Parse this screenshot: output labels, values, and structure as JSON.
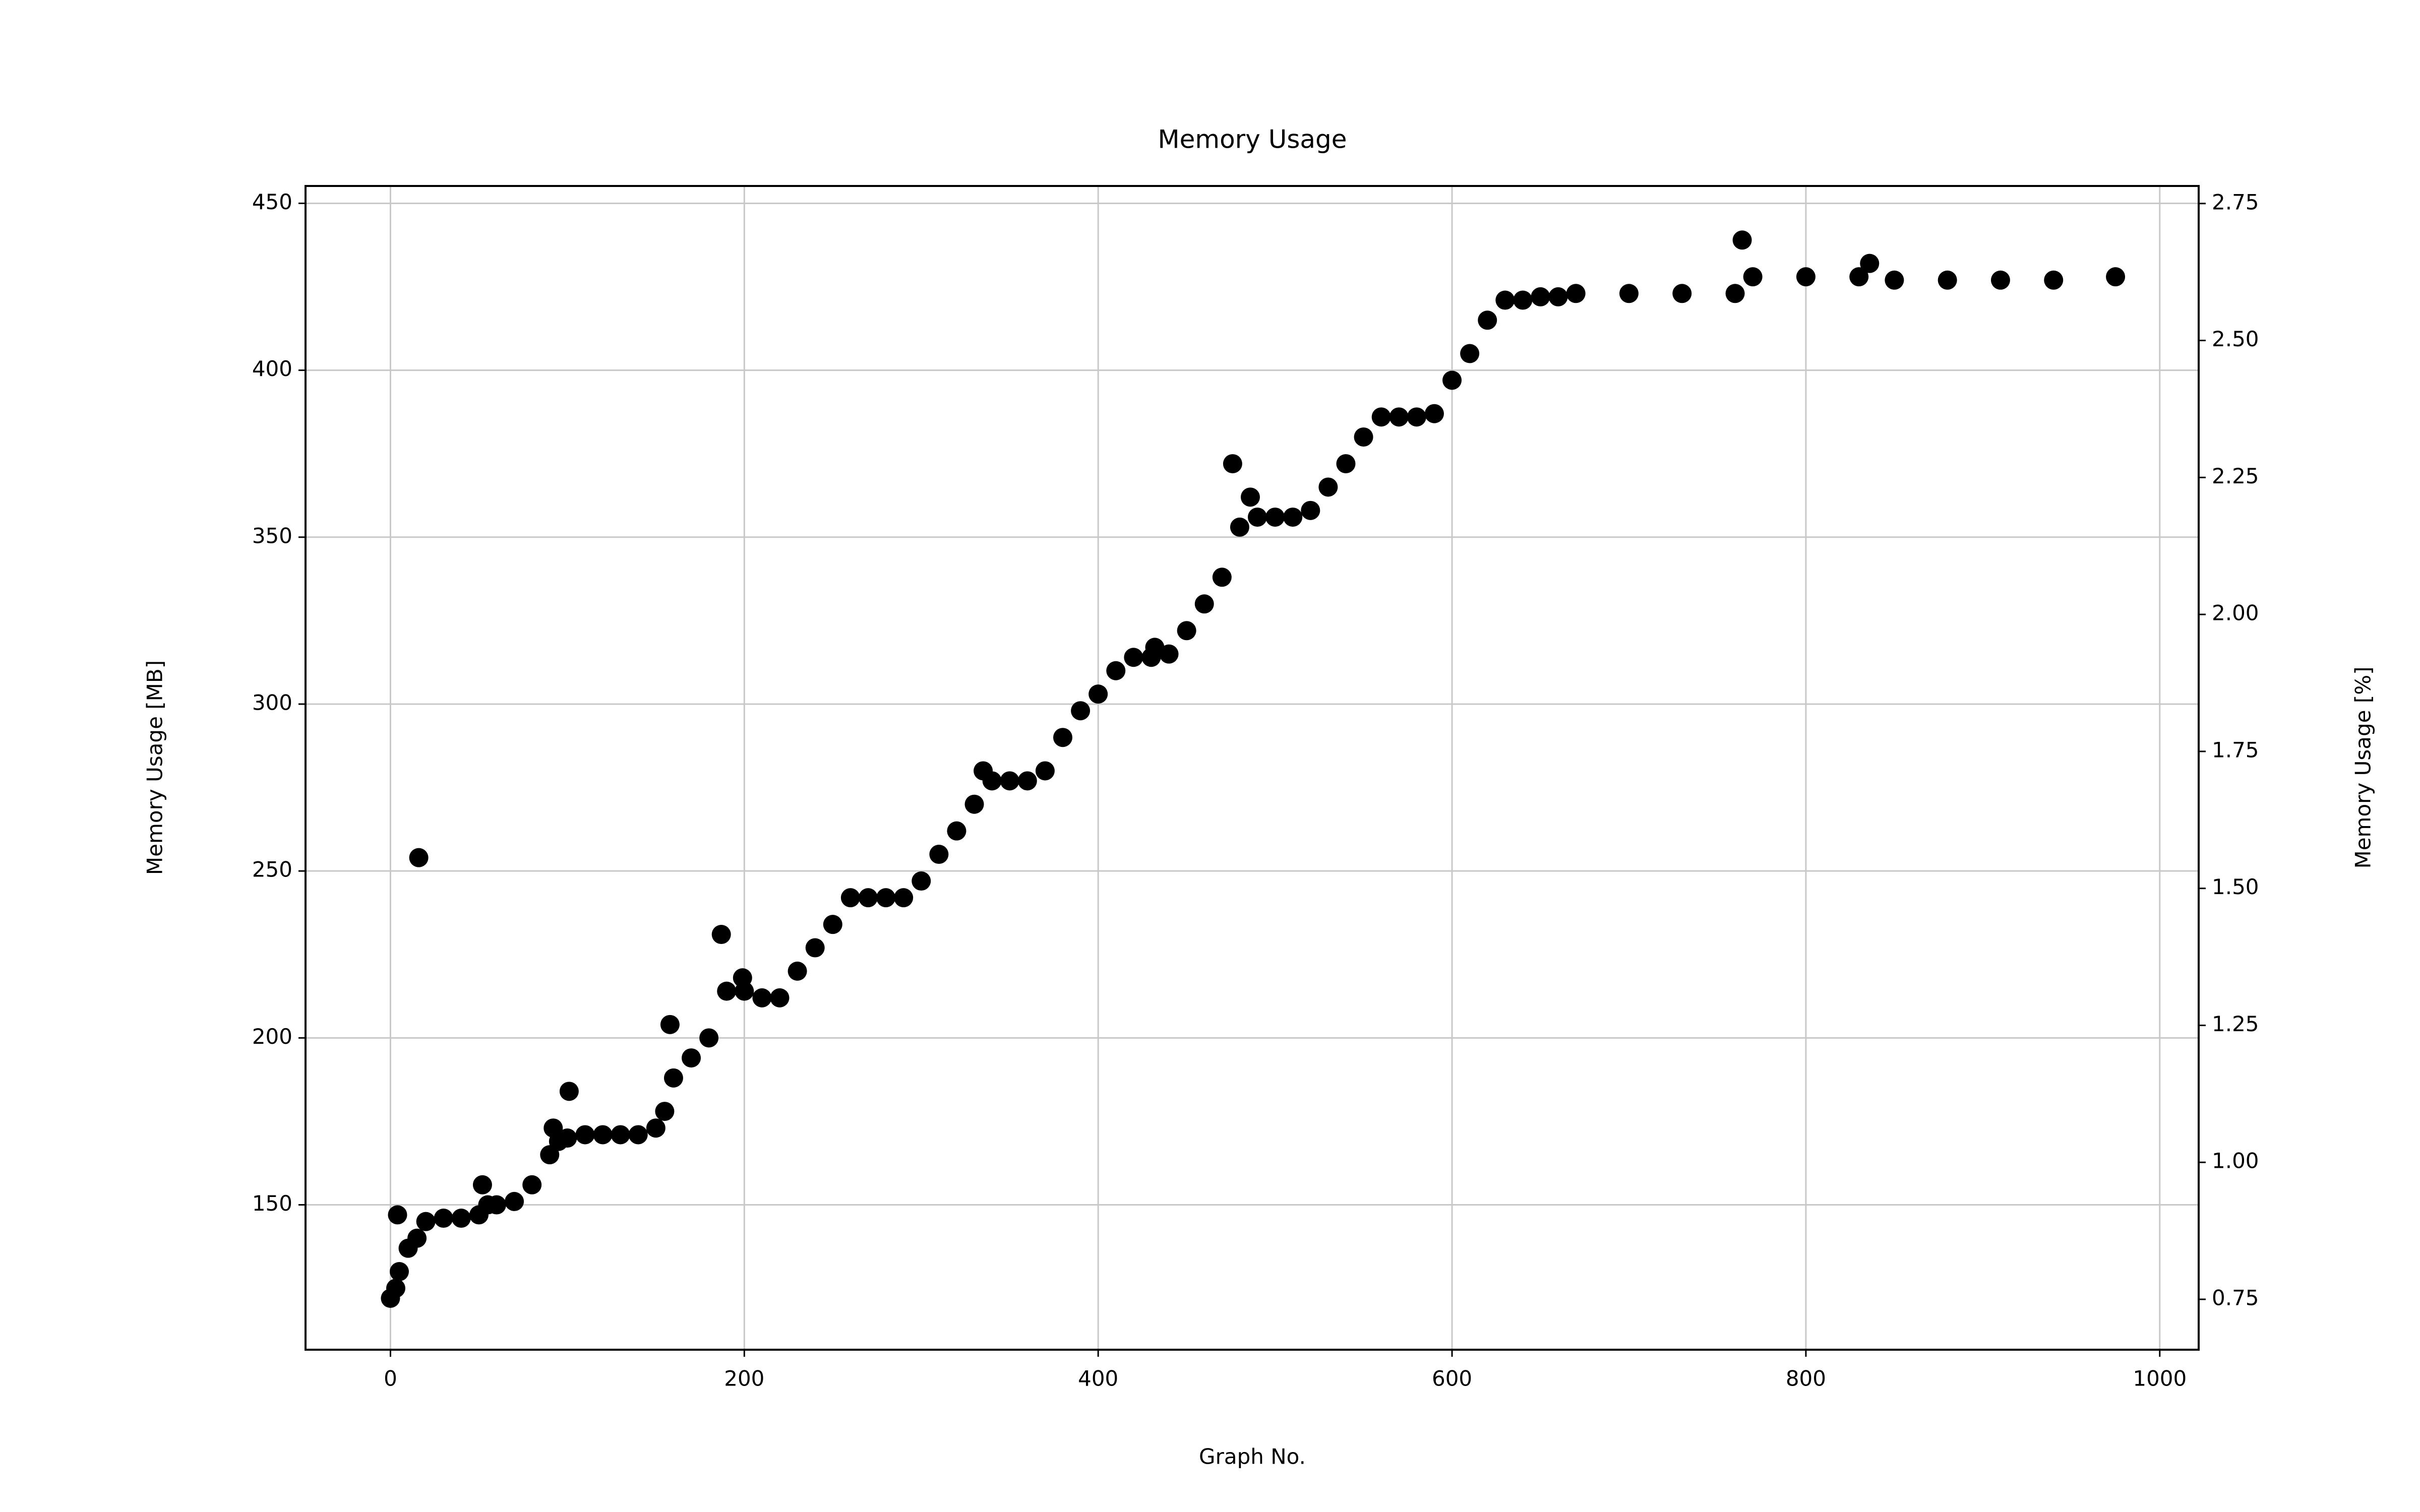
{
  "chart_data": {
    "type": "scatter",
    "title": "Memory Usage",
    "xlabel": "Graph No.",
    "ylabel": "Memory Usage [MB]",
    "y2label": "Memory Usage [%]",
    "xlim": [
      -48,
      1022
    ],
    "xticks": [
      0,
      200,
      400,
      600,
      800,
      1000
    ],
    "ylim": [
      106.6,
      455.2
    ],
    "yticks": [
      150,
      200,
      250,
      300,
      350,
      400,
      450
    ],
    "y2lim": [
      0.658,
      2.782
    ],
    "y2ticks": [
      0.75,
      {
        "value": 1,
        "label": "1.00"
      },
      1.25,
      {
        "value": 1.5,
        "label": "1.50"
      },
      1.75,
      {
        "value": 2,
        "label": "2.00"
      },
      2.25,
      {
        "value": 2.5,
        "label": "2.50"
      },
      2.75
    ],
    "grid": true,
    "series": [
      {
        "name": "Memory Usage",
        "color": "#000000",
        "x": [
          0,
          3,
          4,
          5,
          10,
          15,
          16,
          20,
          30,
          40,
          50,
          52,
          55,
          60,
          70,
          80,
          90,
          92,
          95,
          100,
          101,
          110,
          120,
          130,
          140,
          150,
          155,
          158,
          160,
          170,
          180,
          187,
          190,
          199,
          200,
          210,
          220,
          230,
          240,
          250,
          260,
          270,
          280,
          290,
          300,
          310,
          320,
          330,
          335,
          340,
          350,
          360,
          370,
          380,
          390,
          400,
          410,
          420,
          430,
          432,
          440,
          450,
          460,
          470,
          476,
          480,
          486,
          490,
          500,
          510,
          520,
          530,
          540,
          550,
          560,
          570,
          580,
          590,
          600,
          610,
          620,
          630,
          640,
          650,
          660,
          670,
          700,
          730,
          760,
          764,
          770,
          800,
          830,
          836,
          850,
          880,
          910,
          940,
          975
        ],
        "values": [
          122,
          125,
          147,
          130,
          137,
          140,
          254,
          145,
          146,
          146,
          147,
          156,
          150,
          150,
          151,
          156,
          165,
          173,
          169,
          170,
          184,
          171,
          171,
          171,
          171,
          173,
          178,
          204,
          188,
          194,
          200,
          231,
          214,
          218,
          214,
          212,
          212,
          220,
          227,
          234,
          242,
          242,
          242,
          242,
          247,
          255,
          262,
          270,
          280,
          277,
          277,
          277,
          280,
          290,
          298,
          303,
          310,
          314,
          314,
          317,
          315,
          322,
          330,
          338,
          372,
          353,
          362,
          356,
          356,
          356,
          358,
          365,
          372,
          380,
          386,
          386,
          386,
          387,
          397,
          405,
          415,
          421,
          421,
          422,
          422,
          423,
          423,
          423,
          423,
          439,
          428,
          428,
          428,
          432,
          427,
          427,
          427,
          427,
          428
        ]
      }
    ]
  }
}
